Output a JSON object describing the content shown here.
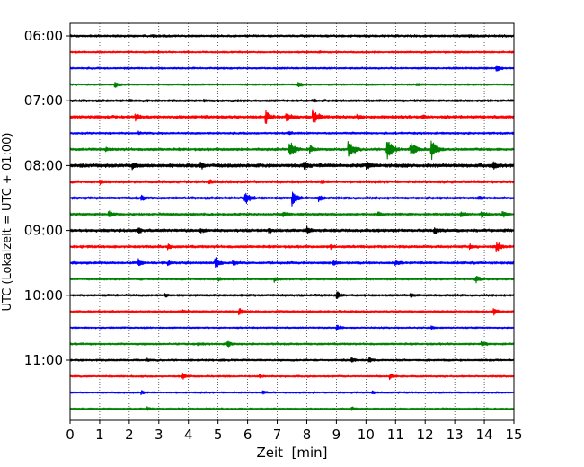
{
  "chart_data": {
    "type": "line",
    "title": "",
    "xlabel": "Zeit  [min]",
    "ylabel": "UTC (Lokalzeit = UTC + 01:00)",
    "xlim": [
      0,
      15
    ],
    "x_ticks": [
      "0",
      "1",
      "2",
      "3",
      "4",
      "5",
      "6",
      "7",
      "8",
      "9",
      "10",
      "11",
      "12",
      "13",
      "14",
      "15"
    ],
    "y_ticks": [
      "06:00",
      "07:00",
      "08:00",
      "09:00",
      "10:00",
      "11:00"
    ],
    "grid": "vertical dotted",
    "trace_colors": [
      "#000000",
      "#ff0000",
      "#0000ff",
      "#008000"
    ],
    "traces": [
      {
        "start": "06:00",
        "color": "#000000",
        "noise": 1.4,
        "events": [
          [
            13.5,
            1.5
          ],
          [
            2.8,
            1.0
          ]
        ]
      },
      {
        "start": "06:15",
        "color": "#ff0000",
        "noise": 1.2,
        "events": [
          [
            2.8,
            1.0
          ],
          [
            8.4,
            0.8
          ]
        ]
      },
      {
        "start": "06:30",
        "color": "#0000ff",
        "noise": 1.2,
        "events": [
          [
            14.4,
            5.0
          ],
          [
            7.1,
            0.8
          ]
        ]
      },
      {
        "start": "06:45",
        "color": "#008000",
        "noise": 1.1,
        "events": [
          [
            1.5,
            4.5
          ],
          [
            7.7,
            5.0
          ],
          [
            11.7,
            2.0
          ]
        ]
      },
      {
        "start": "07:00",
        "color": "#000000",
        "noise": 1.5,
        "events": [
          [
            2.0,
            1.5
          ],
          [
            4.5,
            1.0
          ],
          [
            8.2,
            1.5
          ]
        ]
      },
      {
        "start": "07:15",
        "color": "#ff0000",
        "noise": 1.8,
        "events": [
          [
            2.2,
            4.5
          ],
          [
            6.6,
            9.0
          ],
          [
            7.3,
            7.0
          ],
          [
            8.2,
            13.0
          ],
          [
            9.7,
            3.0
          ],
          [
            11.9,
            3.0
          ]
        ]
      },
      {
        "start": "07:30",
        "color": "#0000ff",
        "noise": 1.3,
        "events": [
          [
            2.3,
            1.5
          ],
          [
            7.4,
            2.0
          ]
        ]
      },
      {
        "start": "07:45",
        "color": "#008000",
        "noise": 1.6,
        "events": [
          [
            7.4,
            13.0
          ],
          [
            9.4,
            15.0
          ],
          [
            10.7,
            16.0
          ],
          [
            11.5,
            11.0
          ],
          [
            12.2,
            14.0
          ],
          [
            8.1,
            5.0
          ],
          [
            1.2,
            2.0
          ]
        ]
      },
      {
        "start": "08:00",
        "color": "#000000",
        "noise": 2.2,
        "events": [
          [
            2.1,
            5.0
          ],
          [
            4.4,
            4.0
          ],
          [
            7.9,
            6.0
          ],
          [
            10.0,
            5.0
          ],
          [
            14.3,
            5.0
          ]
        ]
      },
      {
        "start": "08:15",
        "color": "#ff0000",
        "noise": 1.7,
        "events": [
          [
            4.7,
            3.5
          ],
          [
            1.0,
            3.0
          ],
          [
            8.5,
            2.0
          ]
        ]
      },
      {
        "start": "08:30",
        "color": "#0000ff",
        "noise": 1.6,
        "events": [
          [
            5.9,
            10.0
          ],
          [
            7.5,
            10.0
          ],
          [
            8.4,
            4.0
          ],
          [
            2.4,
            3.0
          ],
          [
            13.8,
            2.0
          ]
        ]
      },
      {
        "start": "08:45",
        "color": "#008000",
        "noise": 1.5,
        "events": [
          [
            1.3,
            5.0
          ],
          [
            7.2,
            3.5
          ],
          [
            10.4,
            3.0
          ],
          [
            13.2,
            4.0
          ],
          [
            13.9,
            5.0
          ],
          [
            14.6,
            4.0
          ]
        ]
      },
      {
        "start": "09:00",
        "color": "#000000",
        "noise": 1.8,
        "events": [
          [
            2.3,
            3.5
          ],
          [
            6.7,
            3.5
          ],
          [
            8.0,
            5.0
          ],
          [
            12.3,
            4.5
          ],
          [
            4.4,
            2.5
          ]
        ]
      },
      {
        "start": "09:15",
        "color": "#ff0000",
        "noise": 1.6,
        "events": [
          [
            3.3,
            3.0
          ],
          [
            14.4,
            8.0
          ],
          [
            13.5,
            3.5
          ],
          [
            8.8,
            2.5
          ]
        ]
      },
      {
        "start": "09:30",
        "color": "#0000ff",
        "noise": 1.5,
        "events": [
          [
            2.3,
            5.0
          ],
          [
            3.3,
            4.0
          ],
          [
            4.9,
            8.0
          ],
          [
            5.5,
            4.0
          ],
          [
            8.9,
            3.0
          ],
          [
            11.0,
            3.5
          ]
        ]
      },
      {
        "start": "09:45",
        "color": "#008000",
        "noise": 1.3,
        "events": [
          [
            5.0,
            2.5
          ],
          [
            6.9,
            3.0
          ],
          [
            13.7,
            6.0
          ]
        ]
      },
      {
        "start": "10:00",
        "color": "#000000",
        "noise": 1.4,
        "events": [
          [
            9.0,
            5.0
          ],
          [
            3.2,
            2.0
          ],
          [
            11.5,
            2.5
          ]
        ]
      },
      {
        "start": "10:15",
        "color": "#ff0000",
        "noise": 1.3,
        "events": [
          [
            5.7,
            5.0
          ],
          [
            14.3,
            5.0
          ],
          [
            3.8,
            2.0
          ]
        ]
      },
      {
        "start": "10:30",
        "color": "#0000ff",
        "noise": 1.1,
        "events": [
          [
            9.0,
            4.0
          ],
          [
            12.2,
            2.0
          ]
        ]
      },
      {
        "start": "10:45",
        "color": "#008000",
        "noise": 1.3,
        "events": [
          [
            5.3,
            5.0
          ],
          [
            13.9,
            5.0
          ],
          [
            4.3,
            2.0
          ]
        ]
      },
      {
        "start": "11:00",
        "color": "#000000",
        "noise": 1.3,
        "events": [
          [
            9.5,
            3.5
          ],
          [
            10.1,
            3.5
          ],
          [
            2.6,
            2.0
          ]
        ]
      },
      {
        "start": "11:15",
        "color": "#ff0000",
        "noise": 1.2,
        "events": [
          [
            3.8,
            4.0
          ],
          [
            10.8,
            4.0
          ],
          [
            6.4,
            2.0
          ]
        ]
      },
      {
        "start": "11:30",
        "color": "#0000ff",
        "noise": 1.1,
        "events": [
          [
            2.4,
            2.5
          ],
          [
            6.5,
            2.0
          ],
          [
            10.2,
            2.0
          ]
        ]
      },
      {
        "start": "11:45",
        "color": "#008000",
        "noise": 1.1,
        "events": [
          [
            2.6,
            2.0
          ],
          [
            9.5,
            2.0
          ]
        ]
      }
    ]
  }
}
